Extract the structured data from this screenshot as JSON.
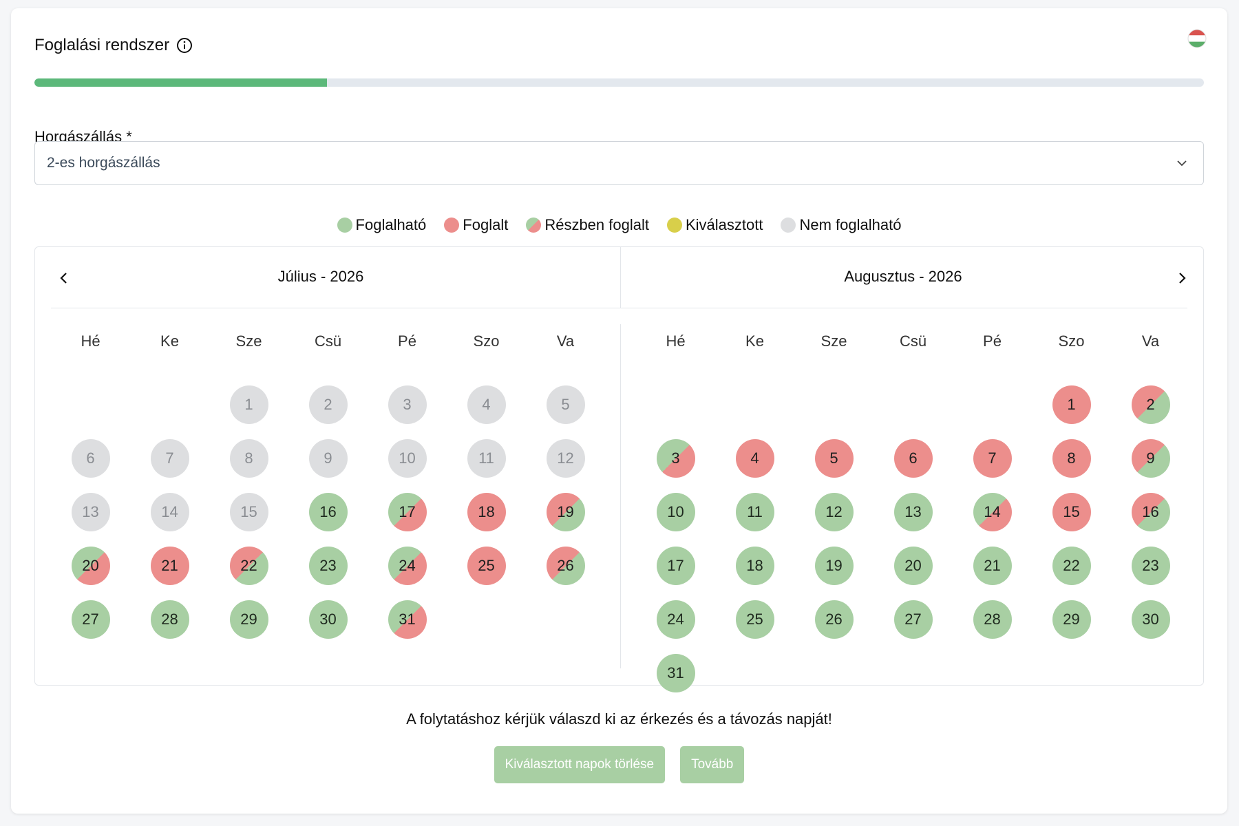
{
  "header": {
    "title": "Foglalási rendszer"
  },
  "progress": {
    "value_percent": 25,
    "fill_color": "#5cb87a"
  },
  "field": {
    "label": "Horgászállás *",
    "value": "2-es horgászállás"
  },
  "legend": [
    {
      "label": "Foglalható",
      "kind": "free"
    },
    {
      "label": "Foglalt",
      "kind": "booked"
    },
    {
      "label": "Részben foglalt",
      "kind": "partial"
    },
    {
      "label": "Kiválasztott",
      "kind": "selected"
    },
    {
      "label": "Nem foglalható",
      "kind": "na"
    }
  ],
  "colors": {
    "free": "#a8cfa3",
    "booked": "#ec8e8c",
    "selected": "#d8cf4a",
    "na": "#dddee0",
    "accent": "#5cb87a"
  },
  "weekdays": [
    "Hé",
    "Ke",
    "Sze",
    "Csü",
    "Pé",
    "Szo",
    "Va"
  ],
  "months": [
    {
      "title": "Július - 2026",
      "offset": 2,
      "days": [
        [
          "1",
          "na"
        ],
        [
          "2",
          "na"
        ],
        [
          "3",
          "na"
        ],
        [
          "4",
          "na"
        ],
        [
          "5",
          "na"
        ],
        [
          "6",
          "na"
        ],
        [
          "7",
          "na"
        ],
        [
          "8",
          "na"
        ],
        [
          "9",
          "na"
        ],
        [
          "10",
          "na"
        ],
        [
          "11",
          "na"
        ],
        [
          "12",
          "na"
        ],
        [
          "13",
          "na"
        ],
        [
          "14",
          "na"
        ],
        [
          "15",
          "na"
        ],
        [
          "16",
          "free"
        ],
        [
          "17",
          "part-a"
        ],
        [
          "18",
          "booked"
        ],
        [
          "19",
          "part-b"
        ],
        [
          "20",
          "part-a"
        ],
        [
          "21",
          "booked"
        ],
        [
          "22",
          "part-b"
        ],
        [
          "23",
          "free"
        ],
        [
          "24",
          "part-a"
        ],
        [
          "25",
          "booked"
        ],
        [
          "26",
          "part-b"
        ],
        [
          "27",
          "free"
        ],
        [
          "28",
          "free"
        ],
        [
          "29",
          "free"
        ],
        [
          "30",
          "free"
        ],
        [
          "31",
          "part-a"
        ]
      ]
    },
    {
      "title": "Augusztus - 2026",
      "offset": 5,
      "days": [
        [
          "1",
          "booked"
        ],
        [
          "2",
          "part-b"
        ],
        [
          "3",
          "part-a"
        ],
        [
          "4",
          "booked"
        ],
        [
          "5",
          "booked"
        ],
        [
          "6",
          "booked"
        ],
        [
          "7",
          "booked"
        ],
        [
          "8",
          "booked"
        ],
        [
          "9",
          "part-b"
        ],
        [
          "10",
          "free"
        ],
        [
          "11",
          "free"
        ],
        [
          "12",
          "free"
        ],
        [
          "13",
          "free"
        ],
        [
          "14",
          "part-a"
        ],
        [
          "15",
          "booked"
        ],
        [
          "16",
          "part-b"
        ],
        [
          "17",
          "free"
        ],
        [
          "18",
          "free"
        ],
        [
          "19",
          "free"
        ],
        [
          "20",
          "free"
        ],
        [
          "21",
          "free"
        ],
        [
          "22",
          "free"
        ],
        [
          "23",
          "free"
        ],
        [
          "24",
          "free"
        ],
        [
          "25",
          "free"
        ],
        [
          "26",
          "free"
        ],
        [
          "27",
          "free"
        ],
        [
          "28",
          "free"
        ],
        [
          "29",
          "free"
        ],
        [
          "30",
          "free"
        ],
        [
          "31",
          "free"
        ]
      ]
    }
  ],
  "hint": "A folytatáshoz kérjük válaszd ki az érkezés és a távozás napját!",
  "buttons": {
    "clear": "Kiválasztott napok törlése",
    "next": "Tovább"
  }
}
